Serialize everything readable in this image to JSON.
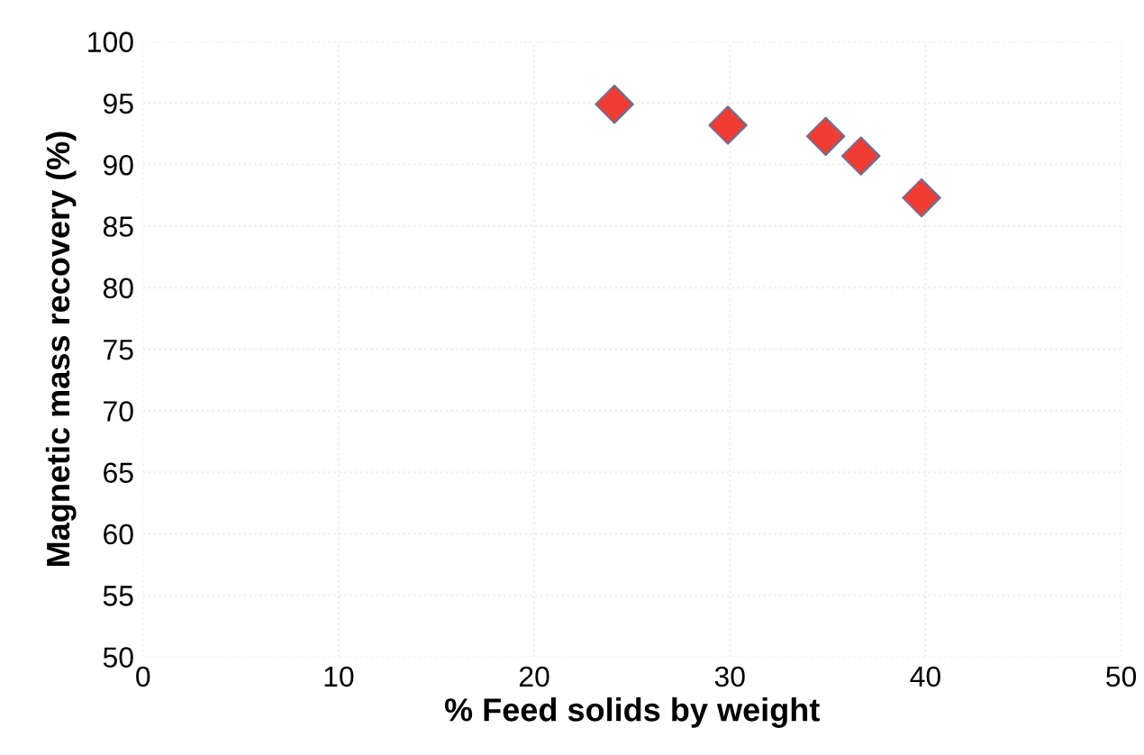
{
  "chart_data": {
    "type": "scatter",
    "xlabel": "% Feed solids by weight",
    "ylabel": "Magnetic mass recovery (%)",
    "x": [
      24.1,
      29.9,
      34.9,
      36.7,
      39.8
    ],
    "series": [
      {
        "color": "#f03c32",
        "values": [
          94.9,
          93.2,
          92.3,
          90.7,
          87.3
        ]
      }
    ],
    "marker": "diamond",
    "xlim": [
      0,
      50
    ],
    "xticks": [
      0,
      10,
      20,
      30,
      40,
      50
    ],
    "ylim": [
      50,
      100
    ],
    "yticks": [
      50,
      55,
      60,
      65,
      70,
      75,
      80,
      85,
      90,
      95,
      100
    ],
    "grid": true,
    "legend": false
  }
}
